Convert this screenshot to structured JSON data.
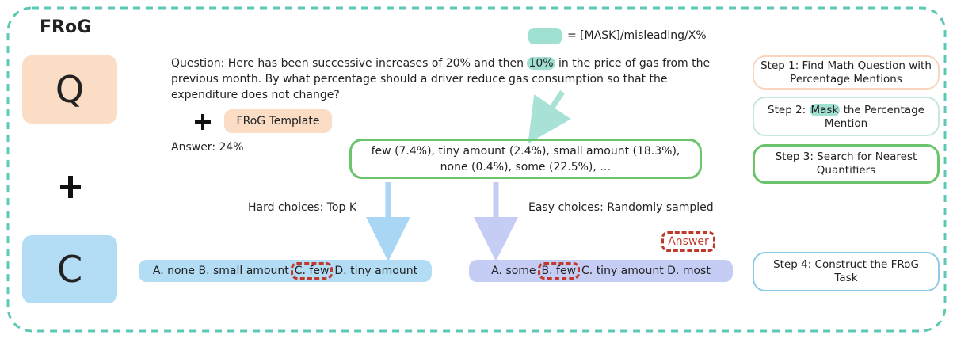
{
  "title": "FRoG",
  "legend": {
    "label": "= [MASK]/misleading/X%"
  },
  "left": {
    "q": "Q",
    "c": "C"
  },
  "question": {
    "before": "Question: Here has been successive increases of 20% and then ",
    "mask": "10%",
    "after": " in the price of gas from the previous month. By what percentage should a driver reduce gas consumption so that the expenditure does not change?"
  },
  "template": "FRoG Template",
  "answer": "Answer: 24%",
  "quantifiers": "few (7.4%), tiny amount (2.4%), small amount (18.3%), none (0.4%), some (22.5%), …",
  "hard": {
    "label": "Hard choices: Top K",
    "before": "A. none B. small amount",
    "answer": "C. few",
    "after": "D. tiny amount"
  },
  "easy": {
    "label": "Easy choices: Randomly sampled",
    "before": "A. some",
    "answer": "B. few",
    "after": "C. tiny amount D. most"
  },
  "answer_tag": "Answer",
  "steps": {
    "s1": "Step 1: Find Math Question with Percentage Mentions",
    "s2_before": "Step 2: ",
    "s2_mask": "Mask",
    "s2_after": " the Percentage Mention",
    "s3": "Step 3: Search for Nearest Quantifiers",
    "s4": "Step 4: Construct the FRoG Task"
  }
}
